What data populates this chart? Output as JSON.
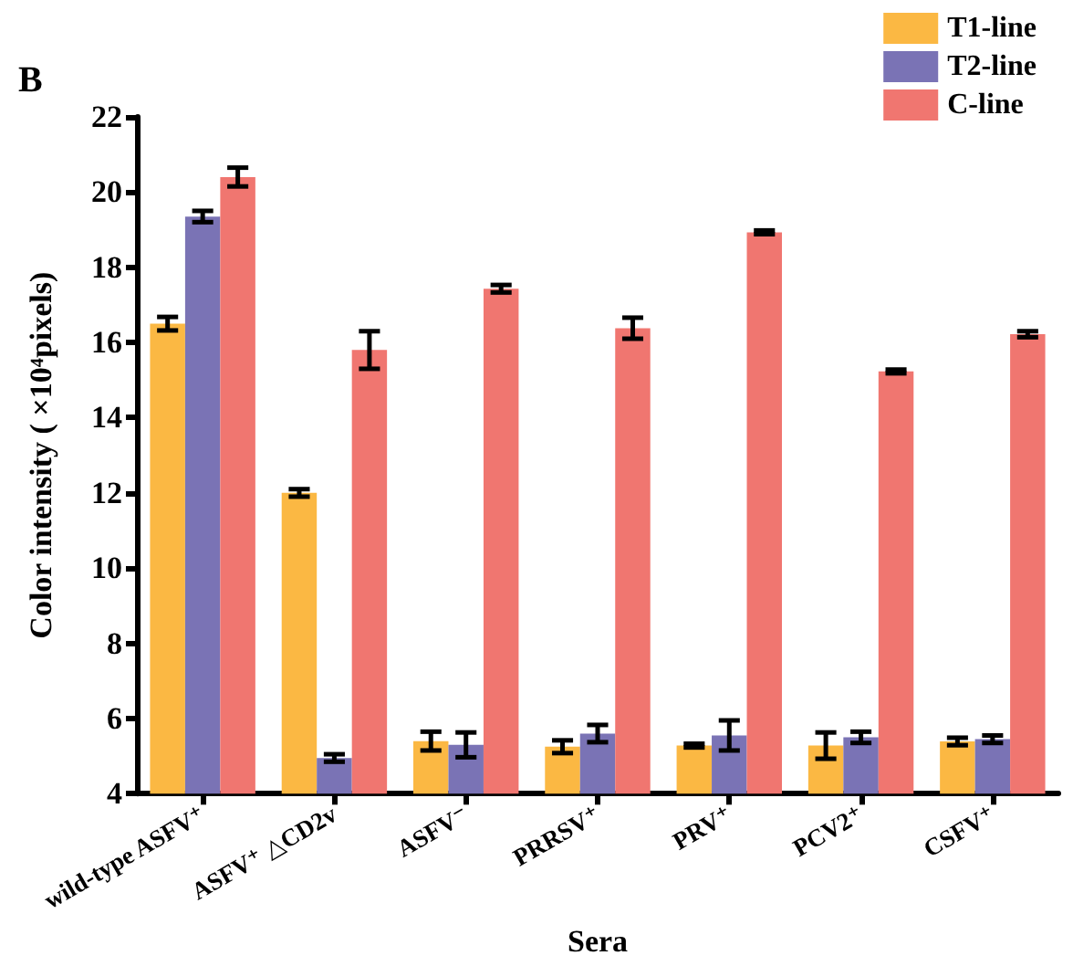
{
  "chart_data": {
    "type": "bar",
    "xlabel": "Sera",
    "ylabel": "Color intensity ( ×10⁴pixels)",
    "annotations": [
      "B"
    ],
    "categories": [
      "wild-type ASFV⁺",
      "ASFV⁺ △CD2v",
      "ASFV⁻",
      "PRRSV⁺",
      "PRV⁺",
      "PCV2⁺",
      "CSFV⁺"
    ],
    "series": [
      {
        "name": "T1-line",
        "color": "#fbb843",
        "values": [
          16.5,
          12.0,
          5.4,
          5.25,
          5.28,
          5.28,
          5.39
        ],
        "errors": [
          0.18,
          0.1,
          0.25,
          0.17,
          0.05,
          0.35,
          0.1
        ]
      },
      {
        "name": "T2-line",
        "color": "#7a73b5",
        "values": [
          19.35,
          4.95,
          5.3,
          5.6,
          5.55,
          5.5,
          5.45
        ],
        "errors": [
          0.15,
          0.1,
          0.33,
          0.23,
          0.4,
          0.15,
          0.1
        ]
      },
      {
        "name": "C-line",
        "color": "#f07670",
        "values": [
          20.4,
          15.8,
          17.43,
          16.38,
          18.93,
          15.23,
          16.22
        ],
        "errors": [
          0.25,
          0.5,
          0.1,
          0.28,
          0.05,
          0.05,
          0.08
        ]
      }
    ],
    "ylim": [
      4,
      22
    ],
    "yticks": [
      4,
      6,
      8,
      10,
      12,
      14,
      16,
      18,
      20,
      22
    ],
    "grid": false,
    "legend": "top right"
  }
}
